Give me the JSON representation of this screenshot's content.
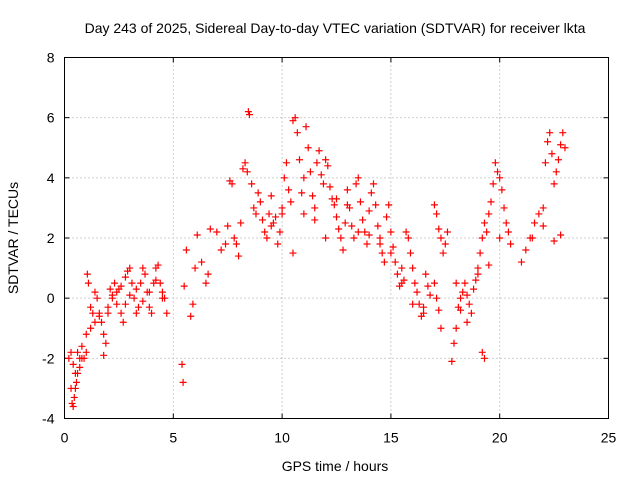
{
  "chart_data": {
    "type": "scatter",
    "title": "Day 243 of 2025, Sidereal Day-to-day VTEC variation (SDTVAR) for receiver lkta",
    "xlabel": "GPS time / hours",
    "ylabel": "SDTVAR / TECUs",
    "xlim": [
      0,
      25
    ],
    "ylim": [
      -4,
      8
    ],
    "xticks": [
      0,
      5,
      10,
      15,
      20,
      25
    ],
    "yticks": [
      -4,
      -2,
      0,
      2,
      4,
      6,
      8
    ],
    "grid": true,
    "marker": "+",
    "color": "#ff0000",
    "series": [
      {
        "name": "SDTVAR",
        "x": [
          0.2,
          0.3,
          0.35,
          0.4,
          0.45,
          0.5,
          0.55,
          0.6,
          0.7,
          0.8,
          0.9,
          1.0,
          1.05,
          1.1,
          1.2,
          1.3,
          1.4,
          1.5,
          1.6,
          1.7,
          1.8,
          1.9,
          2.0,
          2.1,
          2.2,
          2.3,
          2.4,
          2.5,
          2.6,
          2.7,
          2.8,
          2.9,
          3.0,
          3.1,
          3.2,
          3.3,
          3.4,
          3.5,
          3.6,
          3.7,
          3.8,
          3.9,
          4.0,
          4.1,
          4.2,
          4.3,
          4.4,
          4.5,
          4.6,
          4.7,
          0.3,
          0.4,
          0.5,
          0.6,
          0.7,
          0.8,
          1.0,
          1.2,
          1.4,
          1.6,
          1.8,
          2.0,
          2.2,
          2.4,
          2.6,
          2.8,
          3.0,
          3.3,
          3.6,
          3.9,
          4.2,
          4.5,
          5.4,
          5.45,
          5.5,
          5.6,
          5.8,
          5.9,
          6.0,
          6.1,
          6.3,
          6.5,
          6.6,
          6.7,
          7.0,
          7.2,
          7.4,
          7.5,
          7.6,
          7.7,
          7.8,
          7.9,
          8.0,
          8.1,
          8.2,
          8.3,
          8.4,
          8.45,
          8.5,
          8.6,
          8.7,
          8.8,
          8.9,
          9.0,
          9.1,
          9.2,
          9.3,
          9.4,
          9.5,
          9.6,
          9.7,
          9.8,
          9.9,
          10.0,
          10.1,
          10.2,
          10.3,
          10.4,
          10.5,
          10.6,
          10.7,
          10.8,
          10.9,
          11.0,
          11.1,
          11.2,
          11.3,
          11.4,
          11.5,
          11.6,
          11.7,
          11.8,
          11.9,
          12.0,
          12.1,
          12.2,
          12.3,
          12.4,
          12.5,
          12.6,
          12.7,
          12.8,
          12.9,
          13.0,
          13.1,
          13.2,
          13.3,
          13.4,
          13.5,
          13.6,
          13.7,
          13.8,
          13.9,
          14.0,
          14.1,
          14.2,
          14.3,
          14.4,
          14.5,
          14.6,
          14.7,
          14.8,
          14.9,
          15.0,
          15.1,
          15.2,
          15.3,
          15.4,
          15.5,
          15.6,
          15.7,
          15.8,
          15.9,
          16.0,
          16.1,
          16.2,
          16.3,
          16.4,
          16.5,
          16.6,
          16.7,
          16.8,
          9.5,
          10.0,
          10.5,
          11.0,
          11.5,
          12.0,
          12.5,
          13.0,
          13.5,
          14.0,
          14.5,
          15.0,
          15.5,
          16.0,
          16.5,
          17.0,
          17.1,
          17.2,
          17.3,
          17.4,
          17.5,
          17.6,
          17.0,
          17.1,
          17.2,
          17.3,
          17.8,
          17.9,
          18.0,
          18.1,
          18.2,
          18.3,
          18.4,
          18.5,
          18.6,
          18.7,
          18.8,
          18.9,
          19.0,
          19.1,
          19.2,
          19.3,
          19.4,
          19.5,
          19.6,
          19.7,
          19.8,
          19.9,
          20.0,
          20.1,
          20.2,
          20.3,
          20.4,
          20.5,
          19.2,
          19.3,
          18.0,
          18.2,
          18.5,
          19.0,
          19.5,
          20.0,
          21.0,
          21.2,
          21.4,
          21.6,
          21.8,
          22.0,
          22.1,
          22.2,
          22.3,
          22.4,
          22.5,
          22.6,
          22.7,
          22.8,
          22.9,
          23.0,
          21.5,
          22.0,
          22.5,
          22.8
        ],
        "y": [
          -2.0,
          -3.0,
          -3.5,
          -3.6,
          -3.3,
          -3.0,
          -2.8,
          -2.5,
          -2.3,
          -2.0,
          -2.0,
          -1.8,
          0.8,
          0.5,
          -0.3,
          -0.5,
          0.2,
          0.0,
          -0.5,
          -0.8,
          -1.2,
          -1.5,
          -0.5,
          0.3,
          0.1,
          0.5,
          -0.2,
          0.3,
          -0.5,
          -0.8,
          0.7,
          0.9,
          1.0,
          0.5,
          0.0,
          -0.5,
          -0.3,
          0.5,
          1.0,
          0.8,
          0.2,
          -0.3,
          -0.5,
          0.5,
          1.0,
          1.1,
          0.5,
          0.2,
          0.0,
          -0.5,
          -1.8,
          -2.2,
          -2.5,
          -1.8,
          -2.0,
          -1.6,
          -1.2,
          -1.0,
          -0.8,
          -0.6,
          -1.9,
          -0.3,
          0.0,
          0.2,
          0.4,
          -0.2,
          0.1,
          0.3,
          -0.1,
          0.2,
          0.6,
          0.0,
          -2.2,
          -2.8,
          0.4,
          1.6,
          -0.6,
          -0.2,
          1.0,
          2.1,
          1.2,
          0.5,
          0.8,
          2.3,
          2.2,
          1.6,
          1.8,
          2.4,
          3.9,
          3.8,
          2.0,
          1.8,
          1.4,
          2.5,
          4.3,
          4.5,
          4.2,
          6.2,
          6.1,
          3.8,
          3.0,
          2.8,
          3.5,
          3.2,
          2.6,
          2.2,
          2.0,
          2.8,
          3.4,
          2.5,
          2.7,
          1.8,
          2.2,
          3.0,
          4.0,
          4.5,
          3.6,
          3.2,
          5.9,
          6.0,
          5.5,
          4.6,
          3.5,
          2.8,
          5.7,
          5.0,
          4.2,
          3.4,
          2.6,
          4.5,
          4.9,
          4.1,
          3.8,
          4.6,
          4.4,
          3.7,
          3.3,
          3.1,
          2.7,
          2.3,
          2.0,
          1.6,
          2.5,
          3.1,
          3.0,
          2.4,
          2.0,
          3.8,
          4.0,
          3.2,
          2.6,
          2.2,
          1.8,
          2.9,
          3.5,
          3.8,
          3.1,
          2.4,
          2.0,
          1.5,
          1.2,
          2.7,
          3.1,
          2.2,
          1.7,
          1.2,
          0.8,
          0.4,
          1.0,
          0.6,
          2.2,
          2.0,
          1.5,
          1.0,
          0.5,
          0.2,
          -0.2,
          -0.6,
          -0.3,
          0.8,
          0.4,
          0.1,
          2.4,
          2.8,
          1.5,
          4.0,
          3.0,
          2.0,
          3.3,
          3.6,
          2.2,
          2.1,
          1.8,
          1.5,
          0.5,
          -0.2,
          -0.5,
          3.1,
          2.8,
          2.3,
          2.0,
          1.5,
          1.8,
          2.2,
          0.5,
          0.0,
          -0.4,
          -1.0,
          -2.1,
          -1.5,
          -1.0,
          -0.3,
          0.0,
          0.2,
          0.5,
          0.1,
          -0.2,
          -0.5,
          0.3,
          0.6,
          1.0,
          1.5,
          2.0,
          2.5,
          2.2,
          2.8,
          3.2,
          3.8,
          4.5,
          4.2,
          4.0,
          3.6,
          3.0,
          2.5,
          2.2,
          1.8,
          -1.8,
          -2.0,
          0.5,
          -0.4,
          -0.8,
          0.8,
          1.1,
          2.0,
          1.2,
          1.6,
          2.0,
          2.5,
          2.8,
          3.0,
          4.5,
          5.2,
          5.5,
          4.8,
          3.8,
          4.2,
          4.6,
          5.1,
          5.5,
          5.0,
          2.0,
          2.4,
          1.9,
          2.1
        ]
      }
    ]
  }
}
